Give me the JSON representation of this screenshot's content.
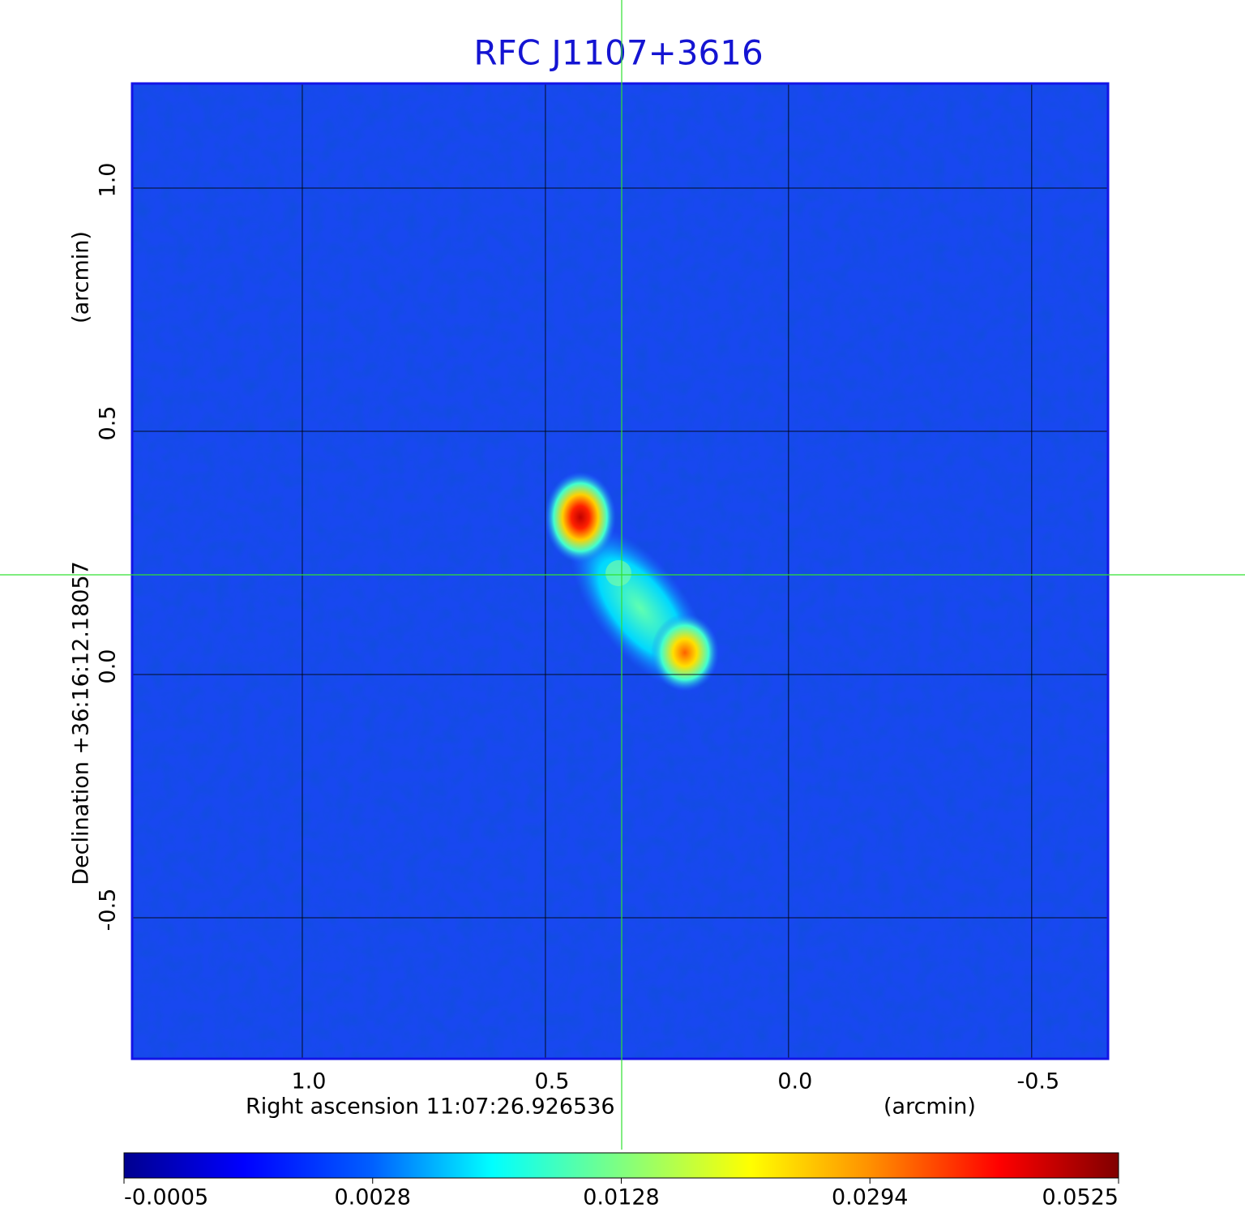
{
  "chart_data": {
    "type": "image",
    "title": "RFC J1107+3616",
    "x_label": "Right ascension  11:07:26.926536",
    "x_unit": "(arcmin)",
    "y_label": "Declination  +36:16:12.18057",
    "y_unit": "(arcmin)",
    "xlim": [
      1.35,
      -0.657
    ],
    "ylim": [
      -0.79,
      1.215
    ],
    "xticks": [
      {
        "value": 1,
        "label": "1.0"
      },
      0.5,
      {
        "value": 0,
        "label": "0.0"
      },
      -0.5
    ],
    "yticks": [
      {
        "value": 1,
        "label": "1.0"
      },
      0.5,
      {
        "value": 0,
        "label": "0.0"
      },
      -0.5
    ],
    "grid": true,
    "colorbar_ticks": [
      -0.0005,
      0.0028,
      0.0128,
      0.0294,
      0.0525
    ]
  }
}
